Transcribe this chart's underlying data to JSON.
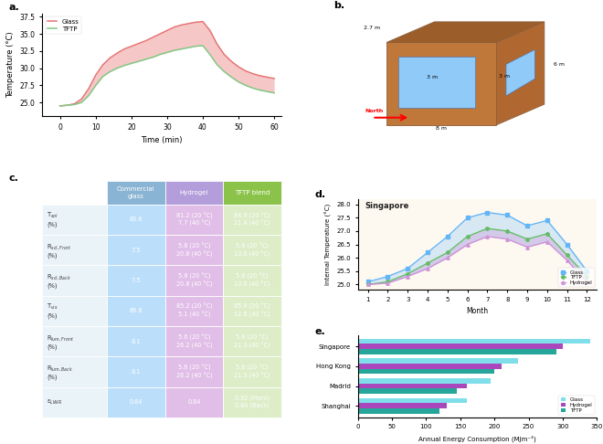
{
  "panel_a": {
    "time": [
      0,
      2,
      4,
      6,
      8,
      10,
      12,
      14,
      16,
      18,
      20,
      22,
      24,
      26,
      28,
      30,
      32,
      34,
      36,
      38,
      40,
      42,
      44,
      46,
      48,
      50,
      52,
      54,
      56,
      58,
      60
    ],
    "glass": [
      24.5,
      24.6,
      24.8,
      25.5,
      27.0,
      29.0,
      30.5,
      31.5,
      32.2,
      32.8,
      33.2,
      33.6,
      34.0,
      34.5,
      35.0,
      35.5,
      36.0,
      36.3,
      36.5,
      36.7,
      36.8,
      35.5,
      33.5,
      32.0,
      31.0,
      30.2,
      29.6,
      29.2,
      28.9,
      28.7,
      28.5
    ],
    "tftp": [
      24.5,
      24.6,
      24.7,
      25.0,
      26.0,
      27.5,
      28.8,
      29.5,
      30.0,
      30.4,
      30.7,
      31.0,
      31.3,
      31.6,
      32.0,
      32.3,
      32.6,
      32.8,
      33.0,
      33.2,
      33.3,
      32.0,
      30.5,
      29.5,
      28.7,
      28.0,
      27.5,
      27.1,
      26.8,
      26.6,
      26.4
    ],
    "glass_color": "#e57373",
    "tftp_color": "#81c784",
    "xlabel": "Time (min)",
    "ylabel": "Temperature (°C)",
    "ylim": [
      23,
      38
    ],
    "xlim": [
      -5,
      62
    ]
  },
  "panel_c": {
    "headers": [
      "Commercial\nglass",
      "Hydrogel",
      "TFTP blend"
    ],
    "header_colors": [
      "#8ab4d4",
      "#b39ddb",
      "#8bc34a"
    ],
    "rows": [
      {
        "label": "T$_{sol}$\n(%)",
        "values": [
          "83.6",
          "81.2 (20 °C)\n7.7 (40 °C)",
          "84.9 (20 °C)\n21.4 (40 °C)"
        ]
      },
      {
        "label": "R$_{sol,Front}$\n(%)",
        "values": [
          "7.5",
          "5.8 (20 °C)\n20.8 (40 °C)",
          "5.6 (20 °C)\n13.0 (40 °C)"
        ]
      },
      {
        "label": "R$_{sol,Back}$\n(%)",
        "values": [
          "7.5",
          "5.8 (20 °C)\n20.8 (40 °C)",
          "5.6 (20 °C)\n13.0 (40 °C)"
        ]
      },
      {
        "label": "T$_{vis}$\n(%)",
        "values": [
          "89.8",
          "85.2 (20 °C)\n5.1 (40 °C)",
          "85.9 (20 °C)\n12.6 (40 °C)"
        ]
      },
      {
        "label": "R$_{lum,Front}$\n(%)",
        "values": [
          "8.1",
          "5.6 (20 °C)\n26.2 (40 °C)",
          "5.6 (20 °C)\n21.3 (40 °C)"
        ]
      },
      {
        "label": "R$_{lum,Back}$\n(%)",
        "values": [
          "8.1",
          "5.6 (20 °C)\n26.2 (40 °C)",
          "5.6 (20 °C)\n21.3 (40 °C)"
        ]
      },
      {
        "label": "ε$_{LWIR}$",
        "values": [
          "0.84",
          "0.84",
          "0.92 (Front)\n0.84 (Back)"
        ]
      }
    ],
    "col0_color": "#bbdefb",
    "col1_color": "#e1bee7",
    "col2_color": "#dcedc8"
  },
  "panel_d": {
    "months": [
      1,
      2,
      3,
      4,
      5,
      6,
      7,
      8,
      9,
      10,
      11,
      12
    ],
    "glass": [
      25.1,
      25.3,
      25.6,
      26.2,
      26.8,
      27.5,
      27.7,
      27.6,
      27.2,
      27.4,
      26.5,
      25.5
    ],
    "tftp": [
      25.0,
      25.1,
      25.4,
      25.8,
      26.2,
      26.8,
      27.1,
      27.0,
      26.7,
      26.9,
      26.1,
      25.3
    ],
    "hydrogel": [
      25.0,
      25.05,
      25.3,
      25.6,
      26.0,
      26.5,
      26.8,
      26.7,
      26.4,
      26.6,
      25.9,
      25.1
    ],
    "glass_color": "#64b5f6",
    "tftp_color": "#66bb6a",
    "hydrogel_color": "#ce93d8",
    "ylabel": "Internal Temperature (°C)",
    "xlabel": "Month",
    "ylim": [
      24.8,
      28.2
    ],
    "xlim": [
      0.5,
      12.5
    ],
    "city": "Singapore"
  },
  "panel_e": {
    "cities": [
      "Shanghai",
      "Madrid",
      "Hong Kong",
      "Singapore"
    ],
    "tftp": [
      120,
      145,
      200,
      290
    ],
    "hydrogel": [
      130,
      160,
      210,
      300
    ],
    "glass": [
      160,
      195,
      235,
      340
    ],
    "tftp_color": "#26a69a",
    "hydrogel_color": "#ab47bc",
    "glass_color": "#80deea",
    "xlabel": "Annual Energy Consumption (MJm⁻²)",
    "xlim": [
      0,
      350
    ]
  }
}
